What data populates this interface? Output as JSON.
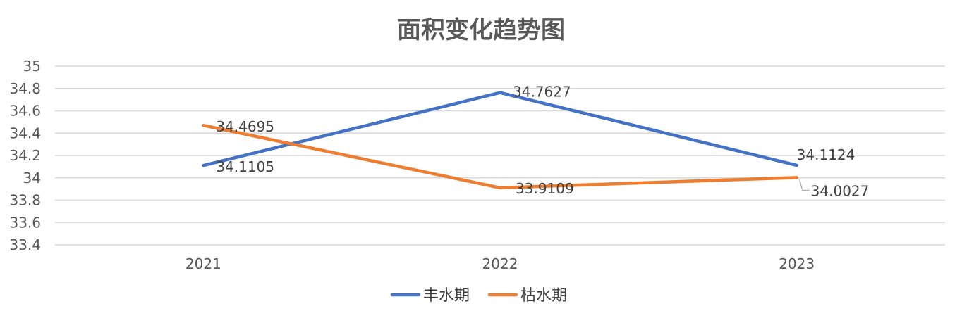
{
  "chart_data": {
    "type": "line",
    "title": "面积变化趋势图",
    "categories": [
      "2021",
      "2022",
      "2023"
    ],
    "series": [
      {
        "name": "丰水期",
        "color": "#4472C4",
        "values": [
          34.1105,
          34.7627,
          34.1124
        ],
        "labels": [
          "34.1105",
          "34.7627",
          "34.1124"
        ]
      },
      {
        "name": "枯水期",
        "color": "#ED7D31",
        "values": [
          34.4695,
          33.9109,
          34.0027
        ],
        "labels": [
          "34.4695",
          "33.9109",
          "34.0027"
        ]
      }
    ],
    "ylim": [
      33.4,
      35
    ],
    "yticks": [
      "33.4",
      "33.6",
      "33.8",
      "34",
      "34.2",
      "34.4",
      "34.6",
      "34.8",
      "35"
    ],
    "grid": true,
    "legend": "bottom"
  }
}
